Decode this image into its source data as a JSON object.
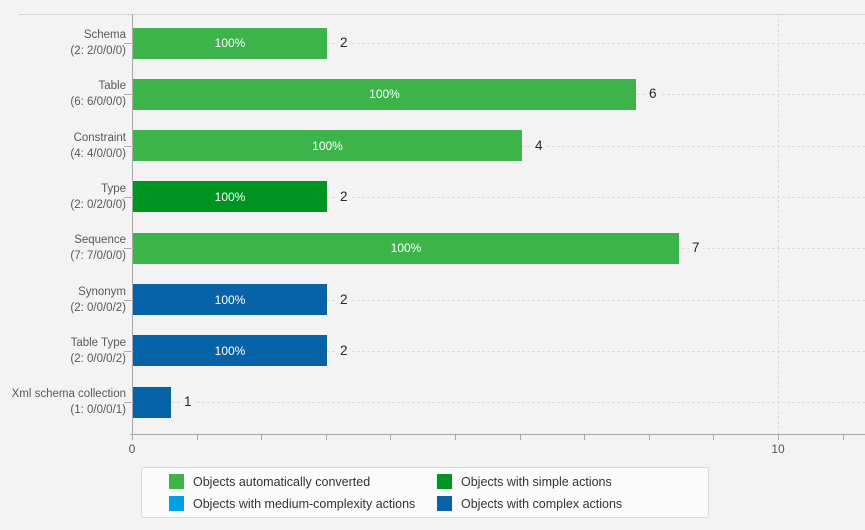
{
  "chart_data": {
    "type": "bar",
    "orientation": "horizontal",
    "title": "",
    "axis_scale": "logarithmic",
    "categories": [
      "Schema",
      "Table",
      "Constraint",
      "Type",
      "Sequence",
      "Synonym",
      "Table Type",
      "Xml schema collection"
    ],
    "category_sublabels": [
      "(2: 2/0/0/0)",
      "(6: 6/0/0/0)",
      "(4: 4/0/0/0)",
      "(2: 0/2/0/0)",
      "(7: 7/0/0/0)",
      "(2: 0/0/0/2)",
      "(2: 0/0/0/2)",
      "(1: 0/0/0/1)"
    ],
    "values": [
      2,
      6,
      4,
      2,
      7,
      2,
      2,
      1
    ],
    "value_labels": [
      "2",
      "6",
      "4",
      "2",
      "7",
      "2",
      "2",
      "1"
    ],
    "bar_percent_labels": [
      "100%",
      "100%",
      "100%",
      "100%",
      "100%",
      "100%",
      "100%",
      ""
    ],
    "bar_series": [
      "auto",
      "auto",
      "auto",
      "simple",
      "auto",
      "complex",
      "complex",
      "complex"
    ],
    "colors": {
      "auto": "#3cb44a",
      "simple": "#009423",
      "medium": "#00a1e4",
      "complex": "#0663a7"
    },
    "x_axis": {
      "ticks": [
        {
          "value": 0,
          "label": "0"
        },
        {
          "value": 10,
          "label": "10"
        }
      ],
      "minor_tick_step": 1,
      "max_tick": 11,
      "vertical_gridline_at": 10
    },
    "legend": {
      "items": [
        {
          "label": "Objects automatically converted",
          "color_key": "auto"
        },
        {
          "label": "Objects with simple actions",
          "color_key": "simple"
        },
        {
          "label": "Objects with medium-complexity actions",
          "color_key": "medium"
        },
        {
          "label": "Objects with complex actions",
          "color_key": "complex"
        }
      ]
    }
  }
}
